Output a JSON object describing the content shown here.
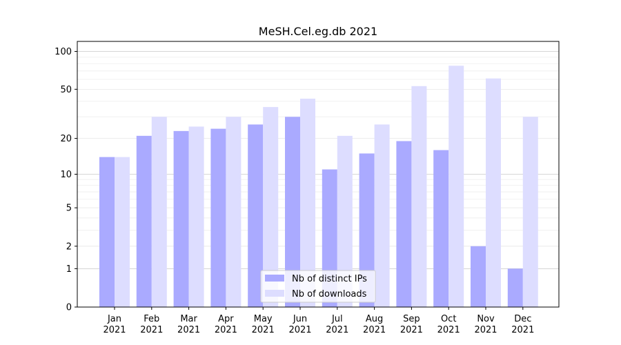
{
  "chart_data": {
    "type": "bar",
    "title": "MeSH.Cel.eg.db 2021",
    "categories": [
      {
        "month": "Jan",
        "year": "2021"
      },
      {
        "month": "Feb",
        "year": "2021"
      },
      {
        "month": "Mar",
        "year": "2021"
      },
      {
        "month": "Apr",
        "year": "2021"
      },
      {
        "month": "May",
        "year": "2021"
      },
      {
        "month": "Jun",
        "year": "2021"
      },
      {
        "month": "Jul",
        "year": "2021"
      },
      {
        "month": "Aug",
        "year": "2021"
      },
      {
        "month": "Sep",
        "year": "2021"
      },
      {
        "month": "Oct",
        "year": "2021"
      },
      {
        "month": "Nov",
        "year": "2021"
      },
      {
        "month": "Dec",
        "year": "2021"
      }
    ],
    "series": [
      {
        "name": "Nb of distinct IPs",
        "color": "#aaaaff",
        "values": [
          14,
          21,
          23,
          24,
          26,
          30,
          11,
          15,
          19,
          16,
          2,
          1
        ]
      },
      {
        "name": "Nb of downloads",
        "color": "#ddddff",
        "values": [
          14,
          30,
          25,
          30,
          36,
          42,
          21,
          26,
          53,
          77,
          61,
          30
        ]
      }
    ],
    "y_scale": "log1p",
    "ylim": [
      0,
      120
    ],
    "y_ticks": [
      0,
      1,
      2,
      5,
      10,
      20,
      50,
      100
    ],
    "grid": true,
    "legend_placement": "bottom-center"
  }
}
